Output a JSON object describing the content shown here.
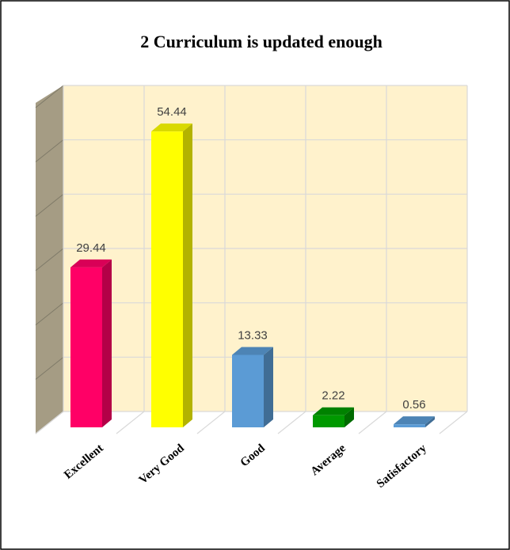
{
  "chart_data": {
    "type": "bar3d",
    "title": "2 Curriculum is updated enough",
    "categories": [
      "Excellent",
      "Very Good",
      "Good",
      "Average",
      "Satisfactory"
    ],
    "values": [
      29.44,
      54.44,
      13.33,
      2.22,
      0.56
    ],
    "colors": [
      "#ff0066",
      "#ffff00",
      "#5b9bd5",
      "#009900",
      "#5b9bd5"
    ],
    "ylim": [
      0,
      60
    ],
    "yticks": [
      0,
      10,
      20,
      30,
      40,
      50,
      60
    ],
    "grid": true
  }
}
